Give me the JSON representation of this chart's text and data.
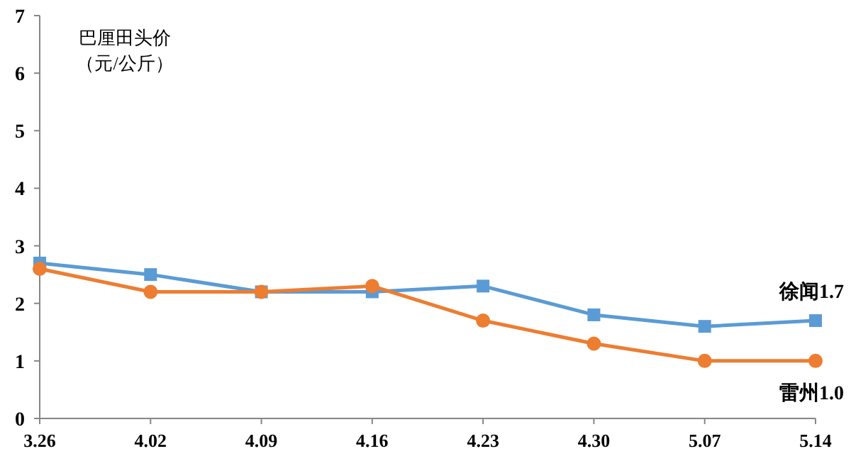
{
  "chart_data": {
    "type": "line",
    "title": "巴厘田头价",
    "ylabel": "（元/公斤）",
    "categories": [
      "3.26",
      "4.02",
      "4.09",
      "4.16",
      "4.23",
      "4.30",
      "5.07",
      "5.14"
    ],
    "ylim": [
      0,
      7
    ],
    "yticks": [
      0,
      1,
      2,
      3,
      4,
      5,
      6,
      7
    ],
    "grid": false,
    "series": [
      {
        "name": "徐闻",
        "color": "#5b9bd5",
        "marker": "square",
        "values": [
          2.7,
          2.5,
          2.2,
          2.2,
          2.3,
          1.8,
          1.6,
          1.7
        ],
        "value_labels": [
          null,
          null,
          null,
          null,
          null,
          null,
          null,
          "1.7"
        ]
      },
      {
        "name": "雷州",
        "color": "#ed7d31",
        "marker": "circle",
        "values": [
          2.6,
          2.2,
          2.2,
          2.3,
          1.7,
          1.3,
          1.0,
          1.0
        ],
        "value_labels": [
          null,
          null,
          null,
          null,
          null,
          null,
          null,
          "1.0"
        ]
      }
    ]
  }
}
